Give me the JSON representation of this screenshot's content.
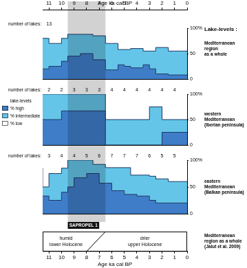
{
  "figure": {
    "header": "Lake-levels :",
    "x_title": "Age ka cal BP",
    "xlim": [
      11.5,
      0
    ],
    "xticks": [
      11,
      10,
      9,
      8,
      7,
      6,
      5,
      4,
      3,
      2,
      1,
      0
    ],
    "shaded_band": [
      9.5,
      6.5
    ],
    "sapropel": {
      "label": "SAPROPEL 1",
      "range": [
        9.5,
        7.0
      ]
    },
    "climate_box": {
      "left_text": [
        "humid",
        "lower Holocene"
      ],
      "right_text": [
        "drier",
        "upper Holocene"
      ],
      "transition_bottom": 8.0,
      "transition_top": 6.5,
      "title": [
        "Mediterranean",
        "region as a whole",
        "(Jalut et al. 2009)"
      ]
    }
  },
  "chart_data": [
    {
      "type": "area",
      "title": [
        "Mediterranean",
        "region",
        "as a whole"
      ],
      "stacked": true,
      "ylim": [
        0,
        100
      ],
      "yticks": [
        0,
        50,
        {
          "value": 100,
          "label": "100%"
        }
      ],
      "lake_counts": {
        "label": "number of lakes:",
        "x": [
          11
        ],
        "values": [
          13
        ]
      },
      "bins": [
        11.5,
        11,
        10.5,
        10,
        9.5,
        9,
        8.5,
        8,
        7.5,
        7,
        6.5,
        6,
        5.5,
        5,
        4.5,
        4,
        3.5,
        3,
        2.5,
        2,
        1.5,
        1,
        0.5,
        0
      ],
      "series": [
        {
          "name": "% high",
          "color": "#3f7dc8",
          "values": [
            20,
            20,
            25,
            25,
            35,
            45,
            45,
            50,
            50,
            38,
            38,
            18,
            18,
            28,
            25,
            22,
            22,
            28,
            20,
            10,
            10,
            8,
            8
          ]
        },
        {
          "name": "% intermediate",
          "color": "#64c5e8",
          "values": [
            60,
            60,
            45,
            45,
            45,
            43,
            43,
            38,
            38,
            47,
            47,
            52,
            52,
            30,
            33,
            38,
            38,
            27,
            35,
            52,
            52,
            47,
            47
          ]
        },
        {
          "name": "% low",
          "color": "#ffffff",
          "values": [
            20,
            20,
            30,
            30,
            20,
            12,
            12,
            12,
            12,
            15,
            15,
            30,
            30,
            42,
            42,
            40,
            40,
            45,
            45,
            38,
            38,
            45,
            45
          ]
        }
      ]
    },
    {
      "type": "area",
      "title": [
        "western",
        "Mediterranean",
        "(Iberian peninsula)"
      ],
      "stacked": true,
      "legend": "left",
      "legend_title": "lake-levels",
      "ylim": [
        0,
        100
      ],
      "yticks": [
        0,
        50,
        {
          "value": 100,
          "label": "100%"
        }
      ],
      "lake_counts": {
        "label": "number of lakes:",
        "x": [
          11,
          10,
          9,
          8,
          7,
          6,
          5,
          4,
          3,
          2,
          1
        ],
        "values": [
          2,
          2,
          3,
          3,
          3,
          4,
          4,
          4,
          4,
          4,
          4
        ]
      },
      "bins": [
        11.5,
        11,
        10.5,
        10,
        9.5,
        9,
        8.5,
        8,
        7.5,
        7,
        6.5,
        6,
        5.5,
        5,
        4.5,
        4,
        3.5,
        3,
        2.5,
        2,
        1.5,
        1,
        0.5,
        0
      ],
      "series": [
        {
          "name": "% high",
          "color": "#3f7dc8",
          "values": [
            50,
            50,
            50,
            50,
            67,
            67,
            67,
            67,
            67,
            67,
            67,
            0,
            0,
            0,
            0,
            0,
            0,
            0,
            0,
            0,
            25,
            25,
            25
          ]
        },
        {
          "name": "% intermediate",
          "color": "#64c5e8",
          "values": [
            50,
            50,
            50,
            50,
            33,
            33,
            33,
            33,
            33,
            33,
            33,
            50,
            50,
            50,
            50,
            50,
            50,
            50,
            75,
            75,
            25,
            25,
            25
          ]
        },
        {
          "name": "% low",
          "color": "#ffffff",
          "values": [
            0,
            0,
            0,
            0,
            0,
            0,
            0,
            0,
            0,
            0,
            0,
            50,
            50,
            50,
            50,
            50,
            50,
            50,
            25,
            25,
            50,
            50,
            50
          ]
        }
      ]
    },
    {
      "type": "area",
      "title": [
        "eastern",
        "Mediterranean",
        "(Balkan peninsula)"
      ],
      "stacked": true,
      "ylim": [
        0,
        100
      ],
      "yticks": [
        0,
        50,
        {
          "value": 100,
          "label": "100%"
        }
      ],
      "lake_counts": {
        "label": "number of lakes:",
        "x": [
          11,
          10,
          9,
          8,
          7,
          6,
          5,
          4,
          3,
          2,
          1
        ],
        "values": [
          3,
          4,
          4,
          5,
          6,
          7,
          7,
          7,
          6,
          5,
          5
        ]
      },
      "bins": [
        11.5,
        11,
        10.5,
        10,
        9.5,
        9,
        8.5,
        8,
        7.5,
        7,
        6.5,
        6,
        5.5,
        5,
        4.5,
        4,
        3.5,
        3,
        2.5,
        2,
        1.5,
        1,
        0.5,
        0
      ],
      "series": [
        {
          "name": "% high",
          "color": "#3f7dc8",
          "values": [
            33,
            33,
            25,
            25,
            40,
            50,
            67,
            67,
            75,
            75,
            57,
            57,
            43,
            43,
            36,
            36,
            33,
            33,
            25,
            20,
            20,
            20,
            20
          ]
        },
        {
          "name": "% intermediate",
          "color": "#64c5e8",
          "values": [
            52,
            17,
            50,
            50,
            45,
            50,
            33,
            33,
            25,
            17,
            35,
            29,
            43,
            43,
            50,
            36,
            39,
            39,
            45,
            45,
            45,
            40,
            40
          ]
        },
        {
          "name": "% low",
          "color": "#ffffff",
          "values": [
            15,
            50,
            25,
            25,
            15,
            0,
            0,
            0,
            0,
            8,
            8,
            14,
            14,
            14,
            14,
            28,
            28,
            28,
            30,
            35,
            35,
            40,
            40
          ]
        }
      ]
    }
  ]
}
